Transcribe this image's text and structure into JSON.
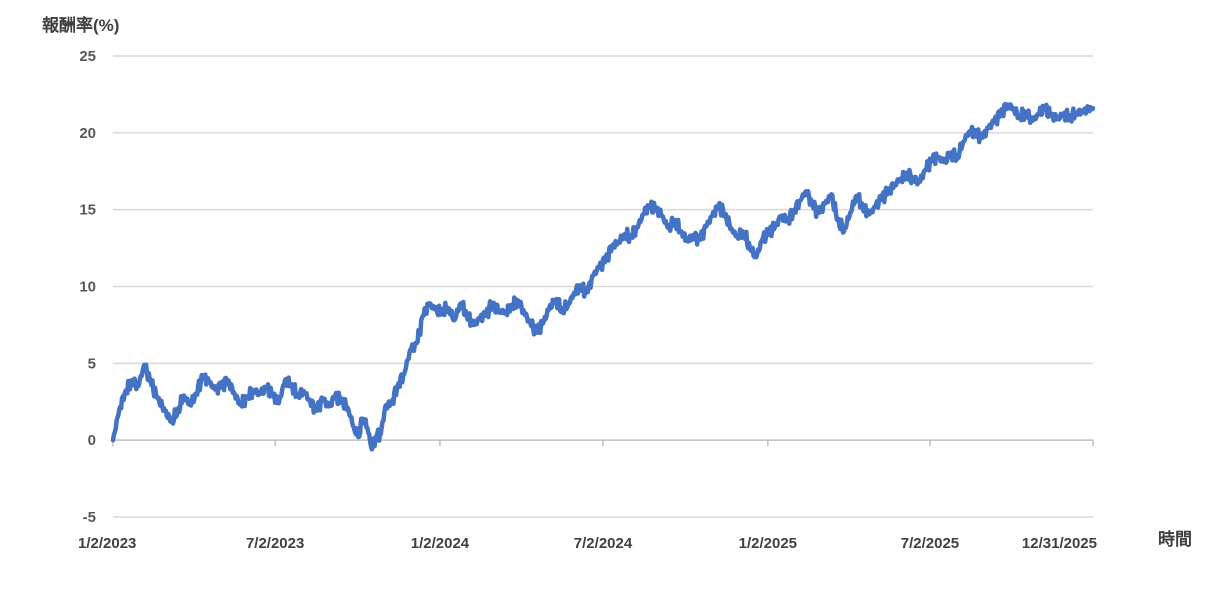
{
  "chart_data": {
    "type": "line",
    "ylabel": "報酬率(%)",
    "xlabel": "時間",
    "ylim": [
      -5,
      25
    ],
    "yticks": [
      25,
      20,
      15,
      10,
      5,
      0,
      -5
    ],
    "xlim": [
      "2023-01-02",
      "2025-12-31"
    ],
    "xticks": [
      "1/2/2023",
      "7/2/2023",
      "1/2/2024",
      "7/2/2024",
      "1/2/2025",
      "7/2/2025",
      "12/31/2025"
    ],
    "grid": true,
    "legend": "none",
    "series": [
      {
        "color": "#4472c4",
        "points": [
          [
            "2023-01-02",
            0.0
          ],
          [
            "2023-01-09",
            2.0
          ],
          [
            "2023-01-16",
            3.2
          ],
          [
            "2023-01-23",
            3.9
          ],
          [
            "2023-01-30",
            3.5
          ],
          [
            "2023-02-06",
            4.9
          ],
          [
            "2023-02-13",
            3.8
          ],
          [
            "2023-02-20",
            2.8
          ],
          [
            "2023-03-01",
            1.9
          ],
          [
            "2023-03-08",
            1.2
          ],
          [
            "2023-03-15",
            1.8
          ],
          [
            "2023-03-22",
            2.9
          ],
          [
            "2023-03-29",
            2.3
          ],
          [
            "2023-04-05",
            3.0
          ],
          [
            "2023-04-12",
            4.2
          ],
          [
            "2023-04-19",
            3.8
          ],
          [
            "2023-04-26",
            3.3
          ],
          [
            "2023-05-03",
            3.6
          ],
          [
            "2023-05-10",
            3.9
          ],
          [
            "2023-05-17",
            3.1
          ],
          [
            "2023-05-24",
            2.3
          ],
          [
            "2023-06-01",
            2.8
          ],
          [
            "2023-06-08",
            3.2
          ],
          [
            "2023-06-15",
            3.0
          ],
          [
            "2023-06-22",
            3.4
          ],
          [
            "2023-06-29",
            2.9
          ],
          [
            "2023-07-06",
            2.4
          ],
          [
            "2023-07-13",
            3.9
          ],
          [
            "2023-07-20",
            3.6
          ],
          [
            "2023-07-27",
            2.9
          ],
          [
            "2023-08-03",
            3.2
          ],
          [
            "2023-08-10",
            2.5
          ],
          [
            "2023-08-17",
            2.0
          ],
          [
            "2023-08-24",
            2.7
          ],
          [
            "2023-08-31",
            2.2
          ],
          [
            "2023-09-07",
            2.9
          ],
          [
            "2023-09-14",
            2.6
          ],
          [
            "2023-09-21",
            2.1
          ],
          [
            "2023-09-28",
            0.8
          ],
          [
            "2023-10-03",
            0.2
          ],
          [
            "2023-10-08",
            1.4
          ],
          [
            "2023-10-13",
            0.8
          ],
          [
            "2023-10-18",
            -0.6
          ],
          [
            "2023-10-23",
            0.3
          ],
          [
            "2023-10-28",
            0.4
          ],
          [
            "2023-11-02",
            2.2
          ],
          [
            "2023-11-09",
            2.4
          ],
          [
            "2023-11-16",
            3.6
          ],
          [
            "2023-11-23",
            4.3
          ],
          [
            "2023-11-30",
            5.9
          ],
          [
            "2023-12-07",
            6.3
          ],
          [
            "2023-12-14",
            8.1
          ],
          [
            "2023-12-21",
            8.9
          ],
          [
            "2023-12-28",
            8.5
          ],
          [
            "2024-01-04",
            8.3
          ],
          [
            "2024-01-11",
            8.6
          ],
          [
            "2024-01-18",
            7.8
          ],
          [
            "2024-01-25",
            8.9
          ],
          [
            "2024-02-01",
            8.1
          ],
          [
            "2024-02-08",
            7.5
          ],
          [
            "2024-02-15",
            7.9
          ],
          [
            "2024-02-22",
            8.2
          ],
          [
            "2024-03-01",
            8.9
          ],
          [
            "2024-03-08",
            8.4
          ],
          [
            "2024-03-15",
            8.3
          ],
          [
            "2024-03-22",
            8.8
          ],
          [
            "2024-03-29",
            9.1
          ],
          [
            "2024-04-05",
            8.3
          ],
          [
            "2024-04-12",
            7.6
          ],
          [
            "2024-04-19",
            7.0
          ],
          [
            "2024-04-26",
            7.6
          ],
          [
            "2024-05-03",
            8.6
          ],
          [
            "2024-05-10",
            9.1
          ],
          [
            "2024-05-17",
            8.4
          ],
          [
            "2024-05-24",
            8.8
          ],
          [
            "2024-05-31",
            9.6
          ],
          [
            "2024-06-07",
            10.0
          ],
          [
            "2024-06-14",
            9.6
          ],
          [
            "2024-06-21",
            10.7
          ],
          [
            "2024-06-28",
            11.3
          ],
          [
            "2024-07-05",
            11.8
          ],
          [
            "2024-07-12",
            12.6
          ],
          [
            "2024-07-19",
            12.9
          ],
          [
            "2024-07-26",
            13.4
          ],
          [
            "2024-08-02",
            13.2
          ],
          [
            "2024-08-09",
            13.8
          ],
          [
            "2024-08-16",
            14.7
          ],
          [
            "2024-08-23",
            15.2
          ],
          [
            "2024-08-30",
            15.0
          ],
          [
            "2024-09-06",
            14.6
          ],
          [
            "2024-09-13",
            13.8
          ],
          [
            "2024-09-20",
            14.3
          ],
          [
            "2024-09-27",
            13.6
          ],
          [
            "2024-10-04",
            13.0
          ],
          [
            "2024-10-11",
            13.3
          ],
          [
            "2024-10-18",
            13.1
          ],
          [
            "2024-10-25",
            13.9
          ],
          [
            "2024-11-01",
            14.6
          ],
          [
            "2024-11-08",
            15.3
          ],
          [
            "2024-11-15",
            14.7
          ],
          [
            "2024-11-22",
            13.8
          ],
          [
            "2024-11-29",
            13.2
          ],
          [
            "2024-12-06",
            13.5
          ],
          [
            "2024-12-13",
            12.5
          ],
          [
            "2024-12-20",
            11.9
          ],
          [
            "2024-12-27",
            13.1
          ],
          [
            "2025-01-03",
            13.5
          ],
          [
            "2025-01-10",
            13.9
          ],
          [
            "2025-01-17",
            14.6
          ],
          [
            "2025-01-24",
            14.3
          ],
          [
            "2025-01-31",
            14.9
          ],
          [
            "2025-02-07",
            15.6
          ],
          [
            "2025-02-14",
            16.2
          ],
          [
            "2025-02-21",
            15.3
          ],
          [
            "2025-02-28",
            14.8
          ],
          [
            "2025-03-07",
            15.4
          ],
          [
            "2025-03-14",
            16.0
          ],
          [
            "2025-03-21",
            14.3
          ],
          [
            "2025-03-28",
            13.6
          ],
          [
            "2025-04-04",
            14.8
          ],
          [
            "2025-04-11",
            15.9
          ],
          [
            "2025-04-18",
            15.1
          ],
          [
            "2025-04-25",
            14.7
          ],
          [
            "2025-05-02",
            15.2
          ],
          [
            "2025-05-09",
            15.8
          ],
          [
            "2025-05-16",
            16.2
          ],
          [
            "2025-05-23",
            16.6
          ],
          [
            "2025-05-30",
            17.0
          ],
          [
            "2025-06-06",
            17.4
          ],
          [
            "2025-06-13",
            17.0
          ],
          [
            "2025-06-20",
            16.8
          ],
          [
            "2025-06-27",
            17.6
          ],
          [
            "2025-07-04",
            18.2
          ],
          [
            "2025-07-11",
            18.4
          ],
          [
            "2025-07-18",
            18.1
          ],
          [
            "2025-07-25",
            18.6
          ],
          [
            "2025-08-01",
            18.3
          ],
          [
            "2025-08-08",
            19.4
          ],
          [
            "2025-08-15",
            20.1
          ],
          [
            "2025-08-22",
            20.0
          ],
          [
            "2025-08-29",
            19.7
          ],
          [
            "2025-09-05",
            20.3
          ],
          [
            "2025-09-12",
            20.8
          ],
          [
            "2025-09-19",
            21.3
          ],
          [
            "2025-09-26",
            21.8
          ],
          [
            "2025-10-03",
            21.6
          ],
          [
            "2025-10-10",
            21.0
          ],
          [
            "2025-10-17",
            21.3
          ],
          [
            "2025-10-24",
            20.8
          ],
          [
            "2025-10-31",
            21.2
          ],
          [
            "2025-11-07",
            21.6
          ],
          [
            "2025-11-14",
            21.1
          ],
          [
            "2025-11-21",
            20.9
          ],
          [
            "2025-11-28",
            21.2
          ],
          [
            "2025-12-05",
            21.0
          ],
          [
            "2025-12-12",
            21.3
          ],
          [
            "2025-12-19",
            21.4
          ],
          [
            "2025-12-31",
            21.6
          ]
        ]
      }
    ]
  }
}
